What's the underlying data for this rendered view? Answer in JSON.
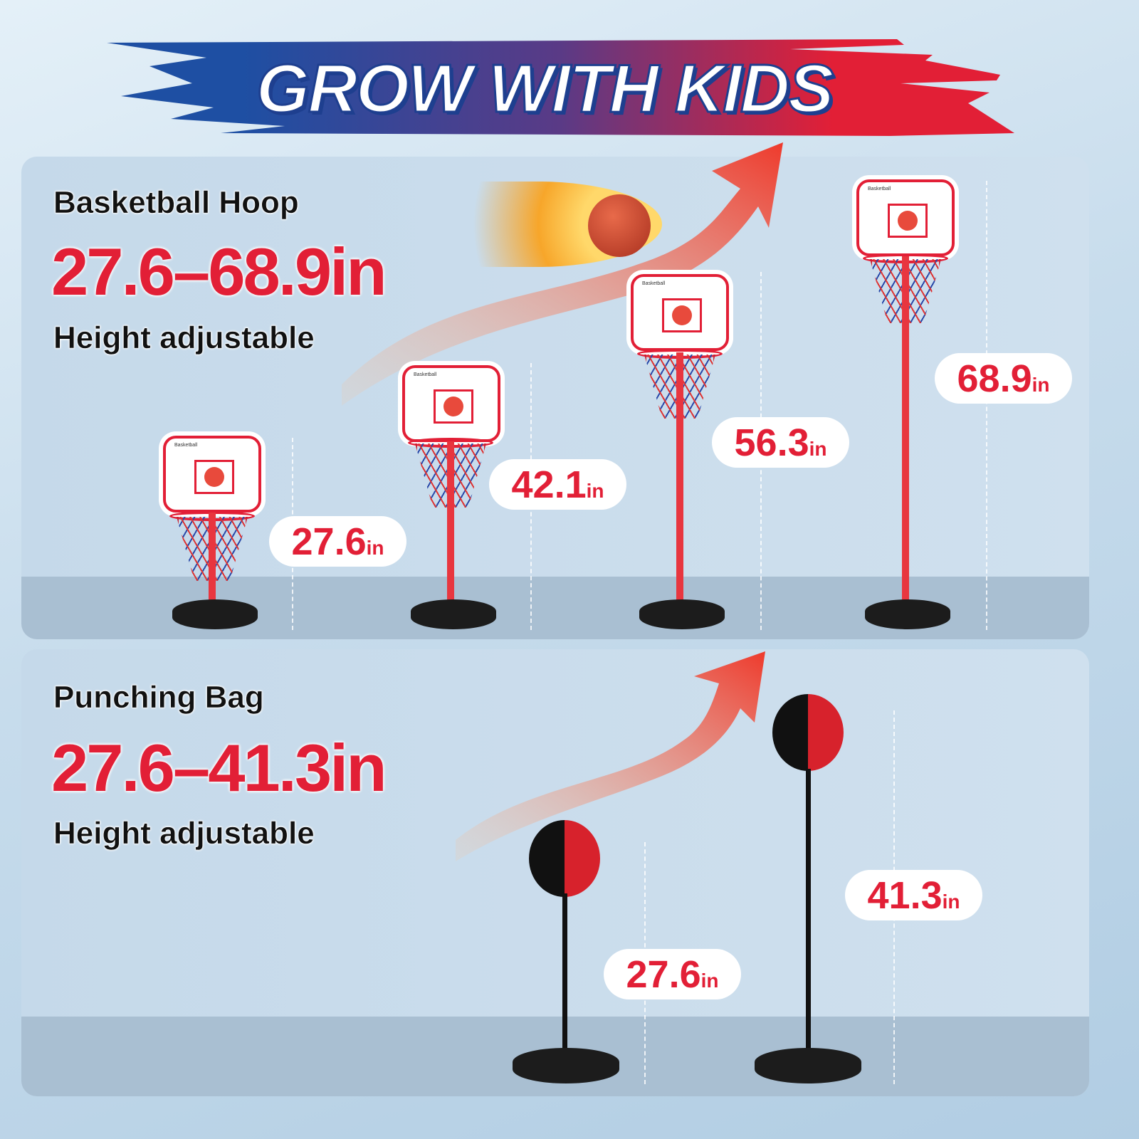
{
  "banner": {
    "title": "GROW WITH KIDS",
    "colors": {
      "blue": "#1e4fa3",
      "red": "#e21f36"
    }
  },
  "hoop_section": {
    "heading": "Basketball Hoop",
    "range": "27.6–68.9in",
    "subtitle": "Height adjustable",
    "backboard_brand": "Basketball",
    "heights": [
      {
        "value": "27.6",
        "unit": "in"
      },
      {
        "value": "42.1",
        "unit": "in"
      },
      {
        "value": "56.3",
        "unit": "in"
      },
      {
        "value": "68.9",
        "unit": "in"
      }
    ]
  },
  "bag_section": {
    "heading": "Punching Bag",
    "range": "27.6–41.3in",
    "subtitle": "Height adjustable",
    "heights": [
      {
        "value": "27.6",
        "unit": "in"
      },
      {
        "value": "41.3",
        "unit": "in"
      }
    ]
  },
  "accent_color": "#e21f36"
}
